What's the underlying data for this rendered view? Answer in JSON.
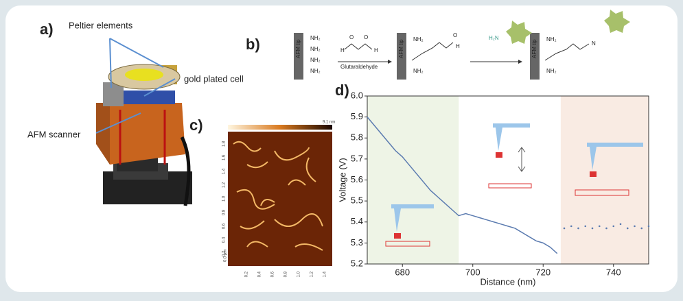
{
  "figure": {
    "panel_labels": [
      "a)",
      "b)",
      "c)",
      "d)"
    ],
    "panel_a": {
      "labels": [
        "Peltier elements",
        "gold plated cell",
        "AFM scanner"
      ]
    },
    "panel_b": {
      "tip": "AFM tip",
      "amine": "NH₂",
      "reagent": "Glutaraldehyde",
      "aldehyde_h": "H",
      "oxygen": "O",
      "protein_amine": "H₂N",
      "imine": "N"
    },
    "panel_c": {
      "scale_unit": "0.0 µm",
      "xlabels": [
        "0.2",
        "0.4",
        "0.6",
        "0.8",
        "1.0",
        "1.2",
        "1.4"
      ],
      "ylabels": [
        "0.2",
        "0.4",
        "0.6",
        "0.8",
        "1.0",
        "1.2",
        "1.4",
        "1.6",
        "1.8"
      ],
      "colorbar_unit": "9.1 nm"
    }
  },
  "chart_data": {
    "type": "line",
    "xlabel": "Distance (nm)",
    "ylabel": "Voltage (V)",
    "x": [
      670,
      672,
      674,
      676,
      678,
      680,
      682,
      684,
      686,
      688,
      690,
      692,
      694,
      696,
      698,
      700,
      702,
      704,
      706,
      708,
      710,
      712,
      714,
      716,
      718,
      720,
      722,
      724,
      726,
      728,
      730,
      732,
      734,
      736,
      738,
      740,
      742,
      744,
      746,
      748,
      750
    ],
    "series": [
      {
        "color": "#5b7bb0",
        "mode": "lines",
        "values": [
          5.9,
          5.86,
          5.82,
          5.78,
          5.74,
          5.71,
          5.67,
          5.63,
          5.59,
          5.55,
          5.52,
          5.49,
          5.46,
          5.43,
          5.44,
          5.43,
          5.42,
          5.41,
          5.4,
          5.39,
          5.38,
          5.37,
          5.35,
          5.33,
          5.31,
          5.3,
          5.28,
          5.25,
          null,
          null,
          null,
          null,
          null,
          null,
          null,
          null,
          null,
          null,
          null,
          null,
          null
        ]
      },
      {
        "color": "#5b7bb0",
        "mode": "markers",
        "values": [
          null,
          null,
          null,
          null,
          null,
          null,
          null,
          null,
          null,
          null,
          null,
          null,
          null,
          null,
          null,
          null,
          null,
          null,
          null,
          null,
          null,
          null,
          null,
          null,
          null,
          null,
          null,
          null,
          5.37,
          5.38,
          5.37,
          5.38,
          5.37,
          5.38,
          5.37,
          5.38,
          5.39,
          5.37,
          5.38,
          5.37,
          5.38
        ]
      }
    ],
    "regions": [
      {
        "from": 670,
        "to": 696,
        "color": "#eef4e6"
      },
      {
        "from": 725,
        "to": 750,
        "color": "#f9ebe3"
      }
    ],
    "xlim": [
      670,
      750
    ],
    "xticks": [
      680,
      700,
      720,
      740
    ],
    "ylim": [
      5.2,
      6.0
    ],
    "yticks": [
      5.2,
      5.3,
      5.4,
      5.5,
      5.6,
      5.7,
      5.8,
      5.9,
      {
        "value": 6,
        "label": "6.0"
      }
    ]
  }
}
